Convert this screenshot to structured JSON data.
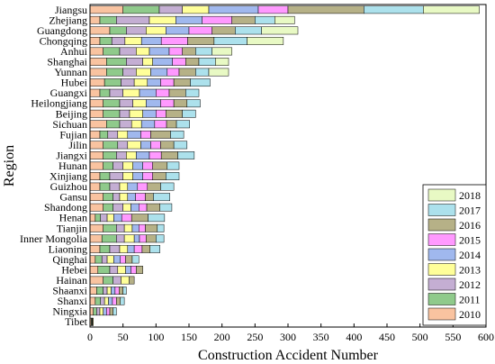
{
  "chart_data": {
    "type": "bar",
    "orientation": "horizontal",
    "stacked": true,
    "xlabel": "Construction Accident Number",
    "ylabel": "Region",
    "xlim": [
      0,
      600
    ],
    "x_ticks": [
      0,
      50,
      100,
      150,
      200,
      250,
      300,
      350,
      400,
      450,
      500,
      550,
      600
    ],
    "grid": false,
    "legend_position": "bottom-right",
    "categories": [
      "Jiangsu",
      "Zhejiang",
      "Guangdong",
      "Chongqing",
      "Anhui",
      "Shanghai",
      "Yunnan",
      "Hubei",
      "Guangxi",
      "Heilongjiang",
      "Beijing",
      "Sichuan",
      "Fujian",
      "Jilin",
      "Jiangxi",
      "Hunan",
      "Xinjiang",
      "Guizhou",
      "Gansu",
      "Shandong",
      "Henan",
      "Tianjin",
      "Inner Mongolia",
      "Liaoning",
      "Qinghai",
      "Hebei",
      "Hainan",
      "Shaanxi",
      "Shanxi",
      "Ningxia",
      "Tibet"
    ],
    "series": [
      {
        "name": "2010",
        "color": "#F9C3A0",
        "values": [
          50,
          15,
          30,
          15,
          20,
          25,
          25,
          22,
          15,
          20,
          20,
          25,
          15,
          20,
          20,
          20,
          15,
          15,
          20,
          20,
          8,
          20,
          18,
          15,
          8,
          12,
          20,
          10,
          8,
          5,
          2
        ]
      },
      {
        "name": "2011",
        "color": "#8FCA8B",
        "values": [
          55,
          25,
          25,
          18,
          25,
          30,
          25,
          25,
          15,
          25,
          25,
          20,
          12,
          22,
          20,
          15,
          15,
          15,
          15,
          15,
          8,
          20,
          22,
          15,
          10,
          18,
          15,
          10,
          8,
          5,
          1
        ]
      },
      {
        "name": "2012",
        "color": "#C4AED3",
        "values": [
          35,
          50,
          30,
          20,
          25,
          25,
          20,
          20,
          20,
          20,
          15,
          18,
          15,
          15,
          15,
          15,
          20,
          15,
          10,
          15,
          10,
          12,
          12,
          15,
          8,
          12,
          12,
          6,
          6,
          5,
          1
        ]
      },
      {
        "name": "2013",
        "color": "#FFFF99",
        "values": [
          40,
          40,
          30,
          25,
          20,
          15,
          22,
          20,
          25,
          20,
          20,
          15,
          15,
          20,
          15,
          15,
          15,
          12,
          12,
          12,
          10,
          12,
          15,
          12,
          10,
          12,
          12,
          6,
          6,
          5,
          1
        ]
      },
      {
        "name": "2014",
        "color": "#A0B8EE",
        "values": [
          75,
          40,
          35,
          30,
          30,
          30,
          25,
          20,
          25,
          22,
          20,
          20,
          20,
          15,
          20,
          15,
          15,
          15,
          12,
          12,
          12,
          10,
          8,
          10,
          10,
          8,
          0,
          6,
          6,
          5,
          0
        ]
      },
      {
        "name": "2015",
        "color": "#FF99FF",
        "values": [
          45,
          45,
          35,
          40,
          20,
          20,
          18,
          20,
          20,
          20,
          15,
          18,
          15,
          15,
          18,
          15,
          15,
          15,
          15,
          12,
          15,
          10,
          10,
          12,
          8,
          8,
          0,
          6,
          6,
          5,
          0
        ]
      },
      {
        "name": "2016",
        "color": "#B6B187",
        "values": [
          115,
          35,
          35,
          40,
          20,
          20,
          25,
          25,
          25,
          20,
          25,
          15,
          30,
          20,
          25,
          22,
          20,
          20,
          12,
          20,
          25,
          18,
          15,
          12,
          10,
          10,
          8,
          6,
          6,
          5,
          0
        ]
      },
      {
        "name": "2017",
        "color": "#ACE1EC",
        "values": [
          90,
          30,
          40,
          50,
          25,
          25,
          20,
          30,
          20,
          20,
          20,
          20,
          20,
          20,
          25,
          18,
          20,
          20,
          25,
          18,
          25,
          10,
          12,
          15,
          10,
          0,
          0,
          5,
          6,
          5,
          0
        ]
      },
      {
        "name": "2018",
        "color": "#E8F9C4",
        "values": [
          85,
          30,
          55,
          55,
          30,
          20,
          30,
          0,
          0,
          0,
          0,
          0,
          0,
          0,
          0,
          0,
          0,
          0,
          0,
          0,
          0,
          0,
          0,
          0,
          0,
          0,
          0,
          0,
          0,
          0,
          0
        ]
      }
    ]
  }
}
